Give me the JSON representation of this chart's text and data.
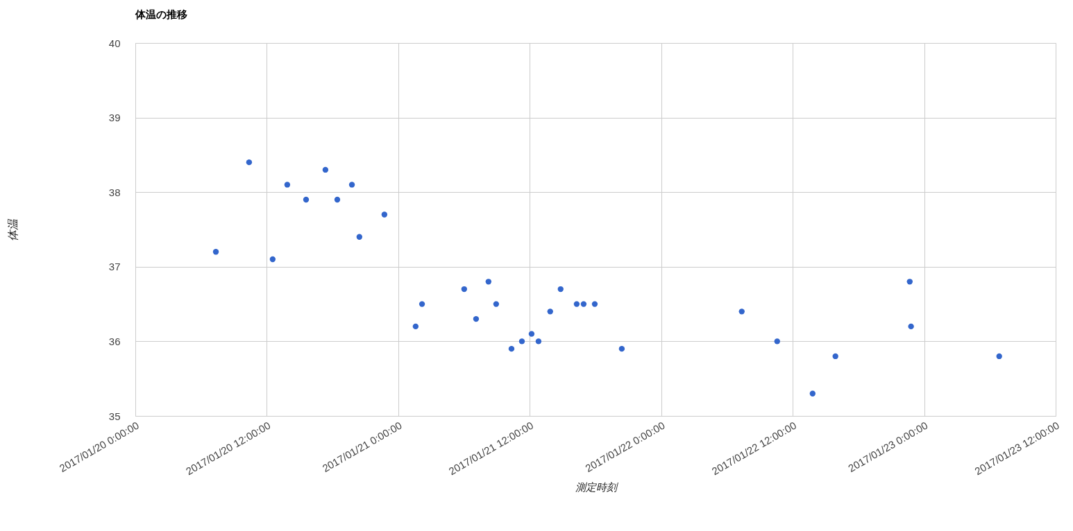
{
  "chart_data": {
    "type": "scatter",
    "title": "体温の推移",
    "xlabel": "測定時刻",
    "ylabel": "体温",
    "x": [
      "2017-01-20T07:21",
      "2017-01-20T10:23",
      "2017-01-20T12:32",
      "2017-01-20T13:52",
      "2017-01-20T15:35",
      "2017-01-20T17:21",
      "2017-01-20T18:26",
      "2017-01-20T19:46",
      "2017-01-20T20:27",
      "2017-01-20T22:44",
      "2017-01-21T01:35",
      "2017-01-21T02:10",
      "2017-01-21T06:01",
      "2017-01-21T07:06",
      "2017-01-21T08:14",
      "2017-01-21T08:56",
      "2017-01-21T10:20",
      "2017-01-21T11:17",
      "2017-01-21T12:10",
      "2017-01-21T12:48",
      "2017-01-21T13:52",
      "2017-01-21T14:49",
      "2017-01-21T16:17",
      "2017-01-21T16:55",
      "2017-01-21T17:56",
      "2017-01-21T20:24",
      "2017-01-22T07:21",
      "2017-01-22T10:35",
      "2017-01-22T13:49",
      "2017-01-22T15:54",
      "2017-01-22T22:41",
      "2017-01-22T22:48",
      "2017-01-23T06:51"
    ],
    "series": [
      {
        "color": "#3366cc",
        "values": [
          37.2,
          38.4,
          37.1,
          38.1,
          37.9,
          38.3,
          37.9,
          38.1,
          37.4,
          37.7,
          36.2,
          36.5,
          36.7,
          36.3,
          36.8,
          36.5,
          35.9,
          36.0,
          36.1,
          36.0,
          36.4,
          36.7,
          36.5,
          36.5,
          36.5,
          35.9,
          36.4,
          36.0,
          35.3,
          35.8,
          36.8,
          36.2,
          35.8
        ]
      }
    ],
    "xlim": [
      "2017-01-20T00:00",
      "2017-01-23T12:00"
    ],
    "xticks": [
      {
        "value": "2017-01-20T00:00",
        "label": "2017/01/20 0:00:00"
      },
      {
        "value": "2017-01-20T12:00",
        "label": "2017/01/20 12:00:00"
      },
      {
        "value": "2017-01-21T00:00",
        "label": "2017/01/21 0:00:00"
      },
      {
        "value": "2017-01-21T12:00",
        "label": "2017/01/21 12:00:00"
      },
      {
        "value": "2017-01-22T00:00",
        "label": "2017/01/22 0:00:00"
      },
      {
        "value": "2017-01-22T12:00",
        "label": "2017/01/22 12:00:00"
      },
      {
        "value": "2017-01-23T00:00",
        "label": "2017/01/23 0:00:00"
      },
      {
        "value": "2017-01-23T12:00",
        "label": "2017/01/23 12:00:00"
      }
    ],
    "ylim": [
      35,
      40
    ],
    "yticks": [
      35,
      36,
      37,
      38,
      39,
      40
    ],
    "grid": true,
    "marker": "circle"
  }
}
